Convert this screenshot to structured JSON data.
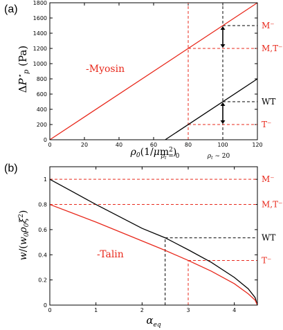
{
  "colors": {
    "red": "#e8281b",
    "black": "#000000"
  },
  "chart_data": [
    {
      "type": "line",
      "panel_label": "(a)",
      "xlabel": "ρ0(1/μm²)",
      "ylabel": "ΔP*p (Pa)",
      "xlim": [
        0,
        120
      ],
      "ylim": [
        0,
        1800
      ],
      "xticks": [
        "0",
        "20",
        "40",
        "60",
        "80",
        "100",
        "120"
      ],
      "yticks": [
        "0",
        "200",
        "400",
        "600",
        "800",
        "1000",
        "1200",
        "1400",
        "1600",
        "1800"
      ],
      "grid": false,
      "series": [
        {
          "name": "",
          "color": "#e8281b",
          "x": [
            0,
            120
          ],
          "y": [
            0,
            1800
          ]
        },
        {
          "name": "",
          "color": "#000000",
          "x": [
            66.7,
            120
          ],
          "y": [
            0,
            800
          ]
        }
      ],
      "series_label": {
        "text": "-Myosin",
        "color": "#e8281b"
      },
      "vlines": [
        {
          "x": 80,
          "color": "#e8281b",
          "label": "ρt = 0"
        },
        {
          "x": 100,
          "color": "#000000",
          "label": "ρt ∼ 20"
        }
      ],
      "hrefs": [
        {
          "y": 1500,
          "x_from": 100,
          "color": "#000000",
          "label": "M⁻",
          "label_color": "#e8281b"
        },
        {
          "y": 1200,
          "x_from": 80,
          "color": "#e8281b",
          "label": "M,T⁻",
          "label_color": "#e8281b"
        },
        {
          "y": 500,
          "x_from": 100,
          "color": "#000000",
          "label": "WT",
          "label_color": "#000000"
        },
        {
          "y": 200,
          "x_from": 80,
          "color": "#e8281b",
          "label": "T⁻",
          "label_color": "#e8281b"
        }
      ],
      "arrows": [
        {
          "x": 100,
          "y_from": 1500,
          "y_to": 1200
        },
        {
          "x": 100,
          "y_from": 500,
          "y_to": 200
        }
      ]
    },
    {
      "type": "line",
      "panel_label": "(b)",
      "xlabel": "αeq",
      "ylabel": "w/(w0ρ0ξ²)",
      "xlim": [
        0,
        4.5
      ],
      "ylim": [
        0,
        1.1
      ],
      "xticks": [
        "0",
        "1",
        "2",
        "3",
        "4"
      ],
      "yticks": [
        "0",
        "0.2",
        "0.4",
        "0.6",
        "0.8",
        "1"
      ],
      "grid": false,
      "series": [
        {
          "name": "",
          "color": "#000000",
          "x": [
            0,
            0.5,
            1,
            1.5,
            2,
            2.5,
            3,
            3.5,
            4,
            4.3,
            4.45,
            4.5
          ],
          "y": [
            1.0,
            0.9,
            0.8,
            0.705,
            0.61,
            0.535,
            0.44,
            0.34,
            0.22,
            0.13,
            0.06,
            0.0
          ]
        },
        {
          "name": "",
          "color": "#e8281b",
          "x": [
            0,
            0.5,
            1,
            1.5,
            2,
            2.5,
            3,
            3.5,
            4,
            4.3,
            4.45,
            4.5
          ],
          "y": [
            0.8,
            0.73,
            0.66,
            0.585,
            0.51,
            0.435,
            0.355,
            0.27,
            0.17,
            0.09,
            0.04,
            0.0
          ]
        }
      ],
      "series_label": {
        "text": "-Talin",
        "color": "#e8281b"
      },
      "vlines": [
        {
          "x": 2.5,
          "y_top": 0.535,
          "color": "#000000"
        },
        {
          "x": 3.0,
          "y_top": 0.355,
          "color": "#e8281b"
        }
      ],
      "hrefs": [
        {
          "y": 1.0,
          "x_from": 0,
          "color": "#e8281b",
          "label": "M⁻",
          "label_color": "#e8281b"
        },
        {
          "y": 0.8,
          "x_from": 0,
          "color": "#e8281b",
          "label": "M,T⁻",
          "label_color": "#e8281b"
        },
        {
          "y": 0.535,
          "x_from": 2.5,
          "color": "#000000",
          "label": "WT",
          "label_color": "#000000"
        },
        {
          "y": 0.355,
          "x_from": 3.0,
          "color": "#e8281b",
          "label": "T⁻",
          "label_color": "#e8281b"
        }
      ]
    }
  ]
}
